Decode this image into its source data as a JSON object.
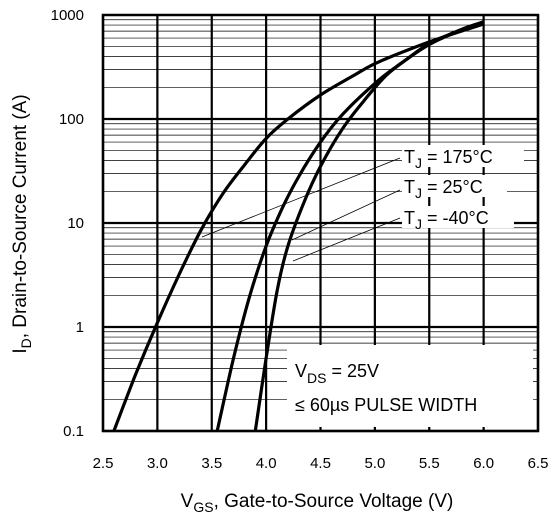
{
  "chart_data": {
    "type": "line",
    "title": "",
    "xlabel": {
      "main": "V",
      "sub": "GS",
      "rest": ", Gate-to-Source Voltage (V)"
    },
    "ylabel": {
      "main": "I",
      "sub": "D",
      "rest": ", Drain-to-Source Current (A)"
    },
    "xlim": [
      2.5,
      6.5
    ],
    "ylim": [
      0.1,
      1000
    ],
    "yscale": "log",
    "grid": true,
    "x_ticks": [
      "2.5",
      "3.0",
      "3.5",
      "4.0",
      "4.5",
      "5.0",
      "5.5",
      "6.0",
      "6.5"
    ],
    "y_ticks": [
      "0.1",
      "1",
      "10",
      "100",
      "1000"
    ],
    "series": [
      {
        "name": "TJ = 175°C",
        "x": [
          2.6,
          2.8,
          3.0,
          3.2,
          3.4,
          3.6,
          3.8,
          4.0,
          4.2,
          4.5,
          4.8,
          5.0,
          5.3,
          5.6,
          6.0
        ],
        "y": [
          0.1,
          0.35,
          1.1,
          3.2,
          8.5,
          19,
          36,
          65,
          100,
          170,
          260,
          340,
          460,
          600,
          820
        ]
      },
      {
        "name": "TJ = 25°C",
        "x": [
          3.55,
          3.7,
          3.85,
          4.0,
          4.15,
          4.3,
          4.5,
          4.7,
          5.0,
          5.2,
          5.5,
          5.8,
          6.0
        ],
        "y": [
          0.1,
          0.5,
          2.0,
          6.0,
          14,
          28,
          60,
          110,
          220,
          320,
          520,
          720,
          850
        ]
      },
      {
        "name": "TJ = -40°C",
        "x": [
          3.9,
          4.0,
          4.1,
          4.2,
          4.35,
          4.5,
          4.7,
          4.9,
          5.1,
          5.3,
          5.5,
          5.8,
          6.0
        ],
        "y": [
          0.1,
          0.5,
          2.2,
          6.0,
          16,
          35,
          80,
          150,
          260,
          380,
          530,
          730,
          860
        ]
      }
    ],
    "annotations": {
      "labels": [
        {
          "pre": "T",
          "sub": "J",
          "post": " = 175°C"
        },
        {
          "pre": "T",
          "sub": "J",
          "post": " = 25°C"
        },
        {
          "pre": "T",
          "sub": "J",
          "post": " = -40°C"
        }
      ],
      "condition_line1": {
        "pre": "V",
        "sub": "DS",
        "post": " = 25V"
      },
      "condition_line2": "≤ 60µs PULSE WIDTH"
    }
  }
}
